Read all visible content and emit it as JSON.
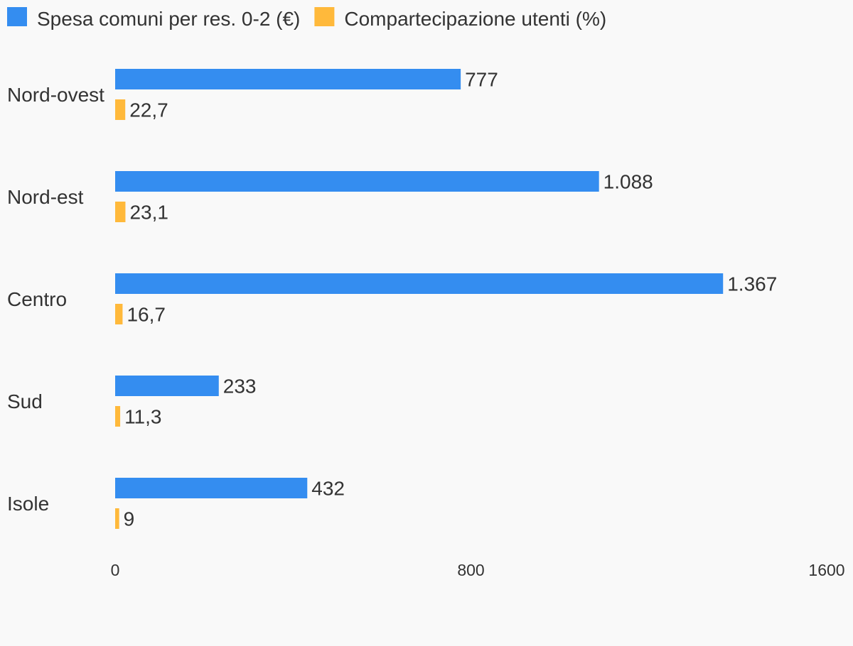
{
  "chart_data": {
    "type": "bar",
    "orientation": "horizontal",
    "categories": [
      "Nord-ovest",
      "Nord-est",
      "Centro",
      "Sud",
      "Isole"
    ],
    "series": [
      {
        "name": "Spesa comuni per res. 0-2 (€)",
        "color": "#348df0",
        "values": [
          777,
          1088,
          1367,
          233,
          432
        ],
        "labels": [
          "777",
          "1.088",
          "1.367",
          "233",
          "432"
        ]
      },
      {
        "name": "Compartecipazione utenti (%)",
        "color": "#ffb93b",
        "values": [
          22.7,
          23.1,
          16.7,
          11.3,
          9
        ],
        "labels": [
          "22,7",
          "23,1",
          "16,7",
          "11,3",
          "9"
        ]
      }
    ],
    "xlim": [
      0,
      1600
    ],
    "xticks": [
      0,
      800,
      1600
    ],
    "xtick_labels": [
      "0",
      "800",
      "1600"
    ],
    "grid": false,
    "legend_position": "top-left"
  }
}
